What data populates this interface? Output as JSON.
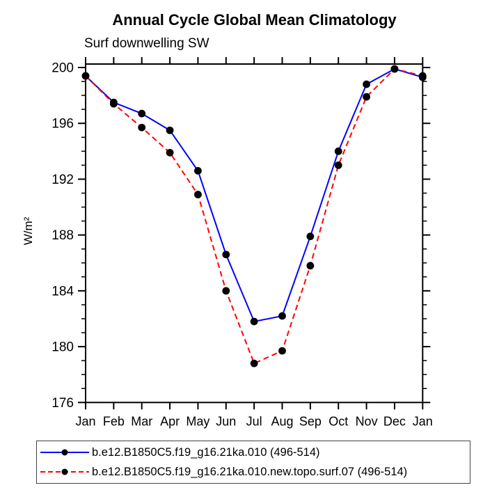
{
  "title": "Annual Cycle Global Mean Climatology",
  "subtitle": "Surf downwelling SW",
  "chart_data": {
    "type": "line",
    "title": "Annual Cycle Global Mean Climatology",
    "subtitle": "Surf downwelling SW",
    "xlabel": "",
    "ylabel": "W/m²",
    "categories": [
      "Jan",
      "Feb",
      "Mar",
      "Apr",
      "May",
      "Jun",
      "Jul",
      "Aug",
      "Sep",
      "Oct",
      "Nov",
      "Dec",
      "Jan"
    ],
    "ylim": [
      176,
      200.25
    ],
    "yticks": [
      176,
      180,
      184,
      188,
      192,
      196,
      200
    ],
    "minor_tick_step": 1,
    "grid": false,
    "legend_position": "bottom-left",
    "axis_color": "#000000",
    "marker_color": "#000000",
    "series": [
      {
        "name": "b.e12.B1850C5.f19_g16.21ka.010 (496-514)",
        "color": "#0000ff",
        "line_style": "solid",
        "marker": "filled-circle",
        "values": [
          199.4,
          197.5,
          196.7,
          195.5,
          192.6,
          186.6,
          181.8,
          182.2,
          187.9,
          194.0,
          198.8,
          199.9,
          199.3
        ]
      },
      {
        "name": "b.e12.B1850C5.f19_g16.21ka.010.new.topo.surf.07 (496-514)",
        "color": "#ff0000",
        "line_style": "dashed",
        "marker": "filled-circle",
        "values": [
          199.4,
          197.4,
          195.7,
          193.9,
          190.9,
          184.0,
          178.8,
          179.7,
          185.8,
          193.0,
          197.9,
          199.9,
          199.4
        ]
      }
    ]
  }
}
